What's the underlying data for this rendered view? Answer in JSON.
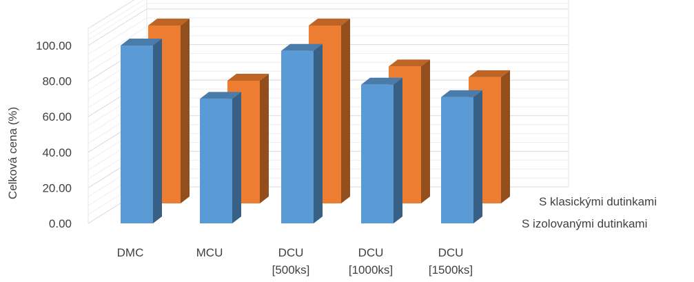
{
  "chart_data": {
    "type": "bar",
    "subtype": "3d-column",
    "title": "",
    "ylabel": "Celková cena (%)",
    "xlabel": "",
    "ylim": [
      0,
      100
    ],
    "yticks": [
      "0.00",
      "20.00",
      "40.00",
      "60.00",
      "80.00",
      "100.00"
    ],
    "categories": [
      [
        "DMC"
      ],
      [
        "MCU"
      ],
      [
        "DCU",
        "[500ks]"
      ],
      [
        "DCU",
        "[1000ks]"
      ],
      [
        "DCU",
        "[1500ks]"
      ]
    ],
    "series": [
      {
        "name": "S izolovanými dutinkami",
        "color": "#5b9bd5",
        "values": [
          100,
          70,
          97,
          78,
          71
        ]
      },
      {
        "name": "S klasickými dutinkami",
        "color": "#ed7d31",
        "values": [
          100,
          69,
          100,
          77,
          71
        ]
      }
    ],
    "grid": true
  }
}
